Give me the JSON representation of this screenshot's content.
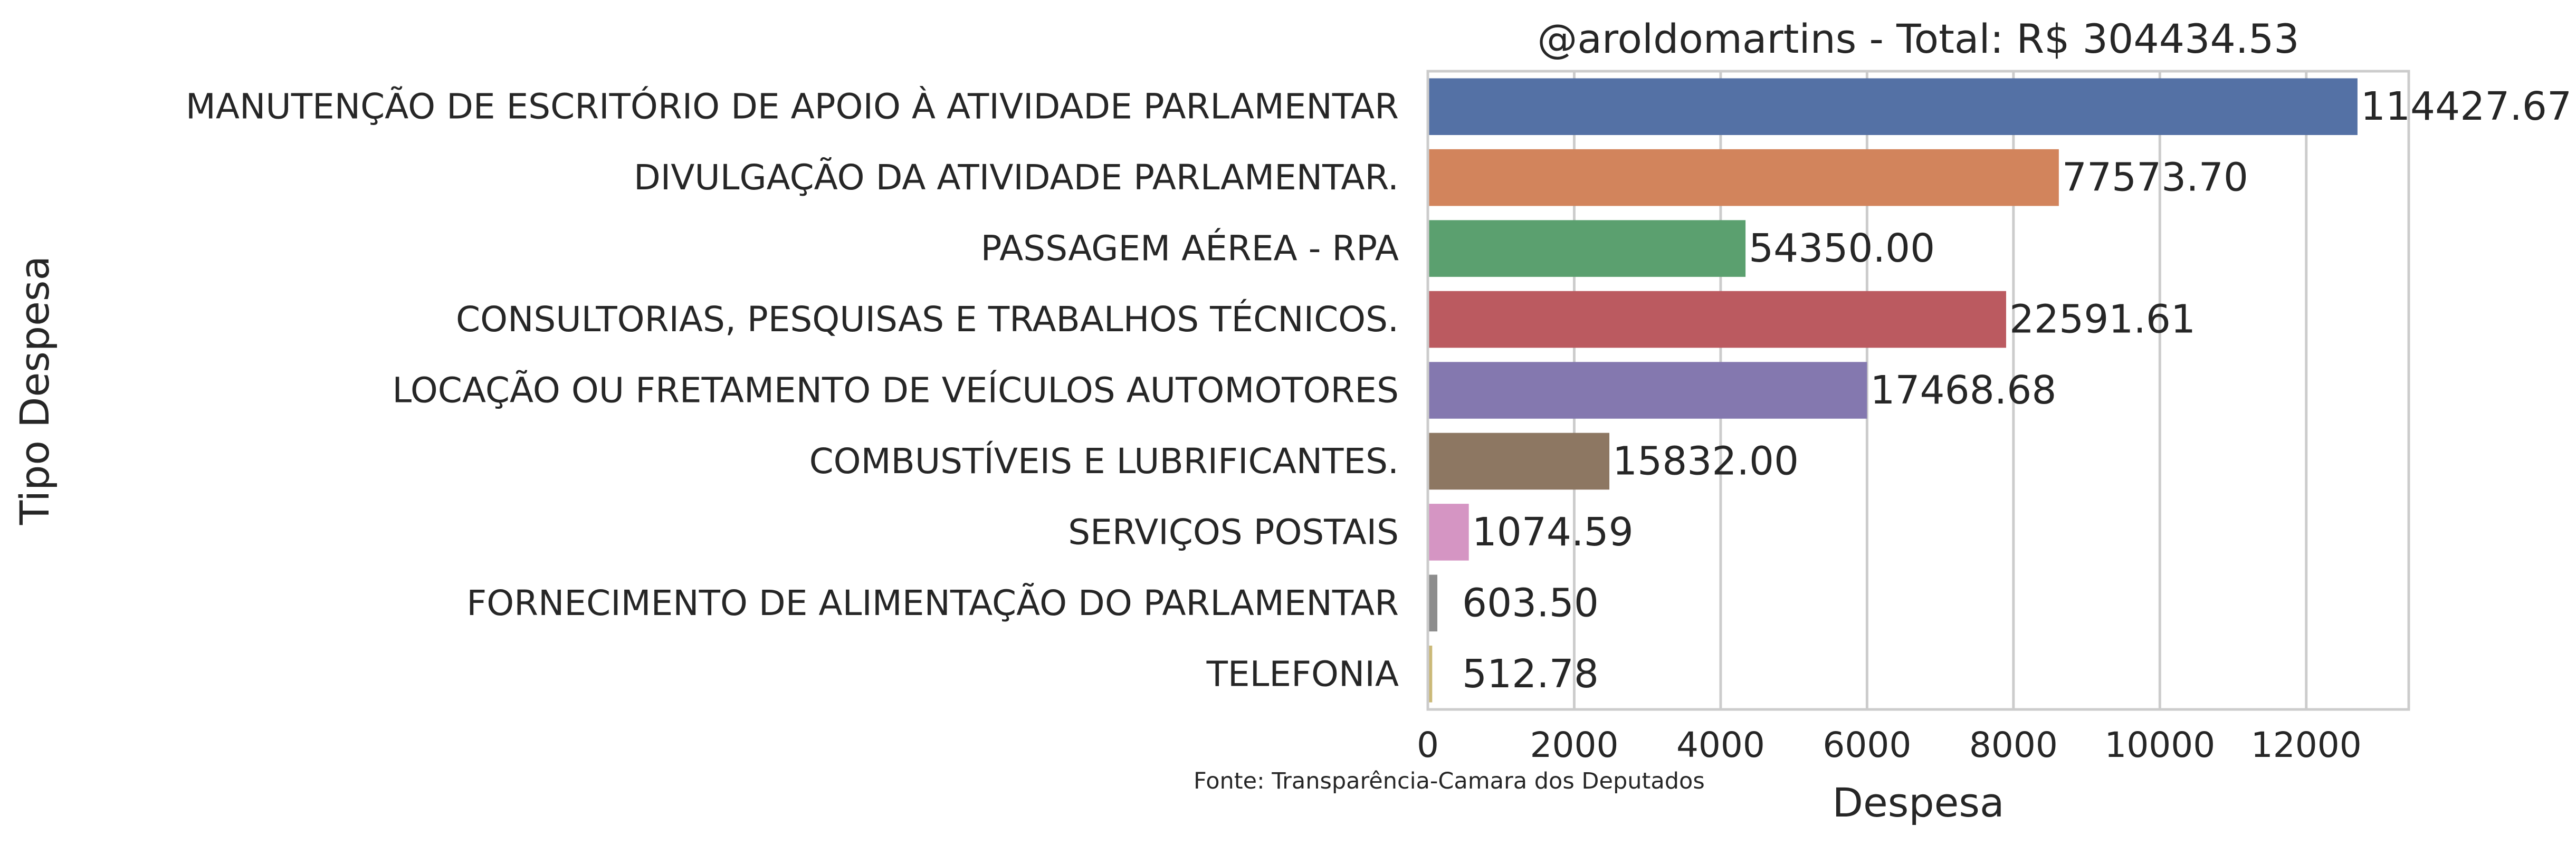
{
  "chart_data": {
    "type": "bar",
    "orientation": "horizontal",
    "title": "@aroldomartins - Total: R$ 304434.53",
    "xlabel": "Despesa",
    "ylabel": "Tipo Despesa",
    "source_note": "Fonte: Transparência-Camara dos Deputados",
    "xlim": [
      0,
      13400
    ],
    "xticks": [
      "0",
      "2000",
      "4000",
      "6000",
      "8000",
      "10000",
      "12000"
    ],
    "xtick_values": [
      0,
      2000,
      4000,
      6000,
      8000,
      10000,
      12000
    ],
    "grid": true,
    "categories": [
      "MANUTENÇÃO DE ESCRITÓRIO DE APOIO À ATIVIDADE PARLAMENTAR",
      "DIVULGAÇÃO DA ATIVIDADE PARLAMENTAR.",
      "PASSAGEM AÉREA - RPA",
      "CONSULTORIAS, PESQUISAS E TRABALHOS TÉCNICOS.",
      "LOCAÇÃO OU FRETAMENTO DE VEÍCULOS AUTOMOTORES",
      "COMBUSTÍVEIS E LUBRIFICANTES.",
      "SERVIÇOS POSTAIS",
      "FORNECIMENTO DE ALIMENTAÇÃO DO PARLAMENTAR",
      "TELEFONIA"
    ],
    "values": [
      12700,
      8620,
      4340,
      7900,
      6000,
      2480,
      560,
      130,
      60
    ],
    "value_labels": [
      "114427.67",
      "77573.70",
      "54350.00",
      "22591.61",
      "17468.68",
      "15832.00",
      "1074.59",
      "603.50",
      "512.78"
    ],
    "colors": [
      "#5471a5",
      "#d2845c",
      "#5ba06f",
      "#bb5a60",
      "#8478af",
      "#8d7762",
      "#d595c3",
      "#8d8d8d",
      "#cbb978"
    ]
  }
}
